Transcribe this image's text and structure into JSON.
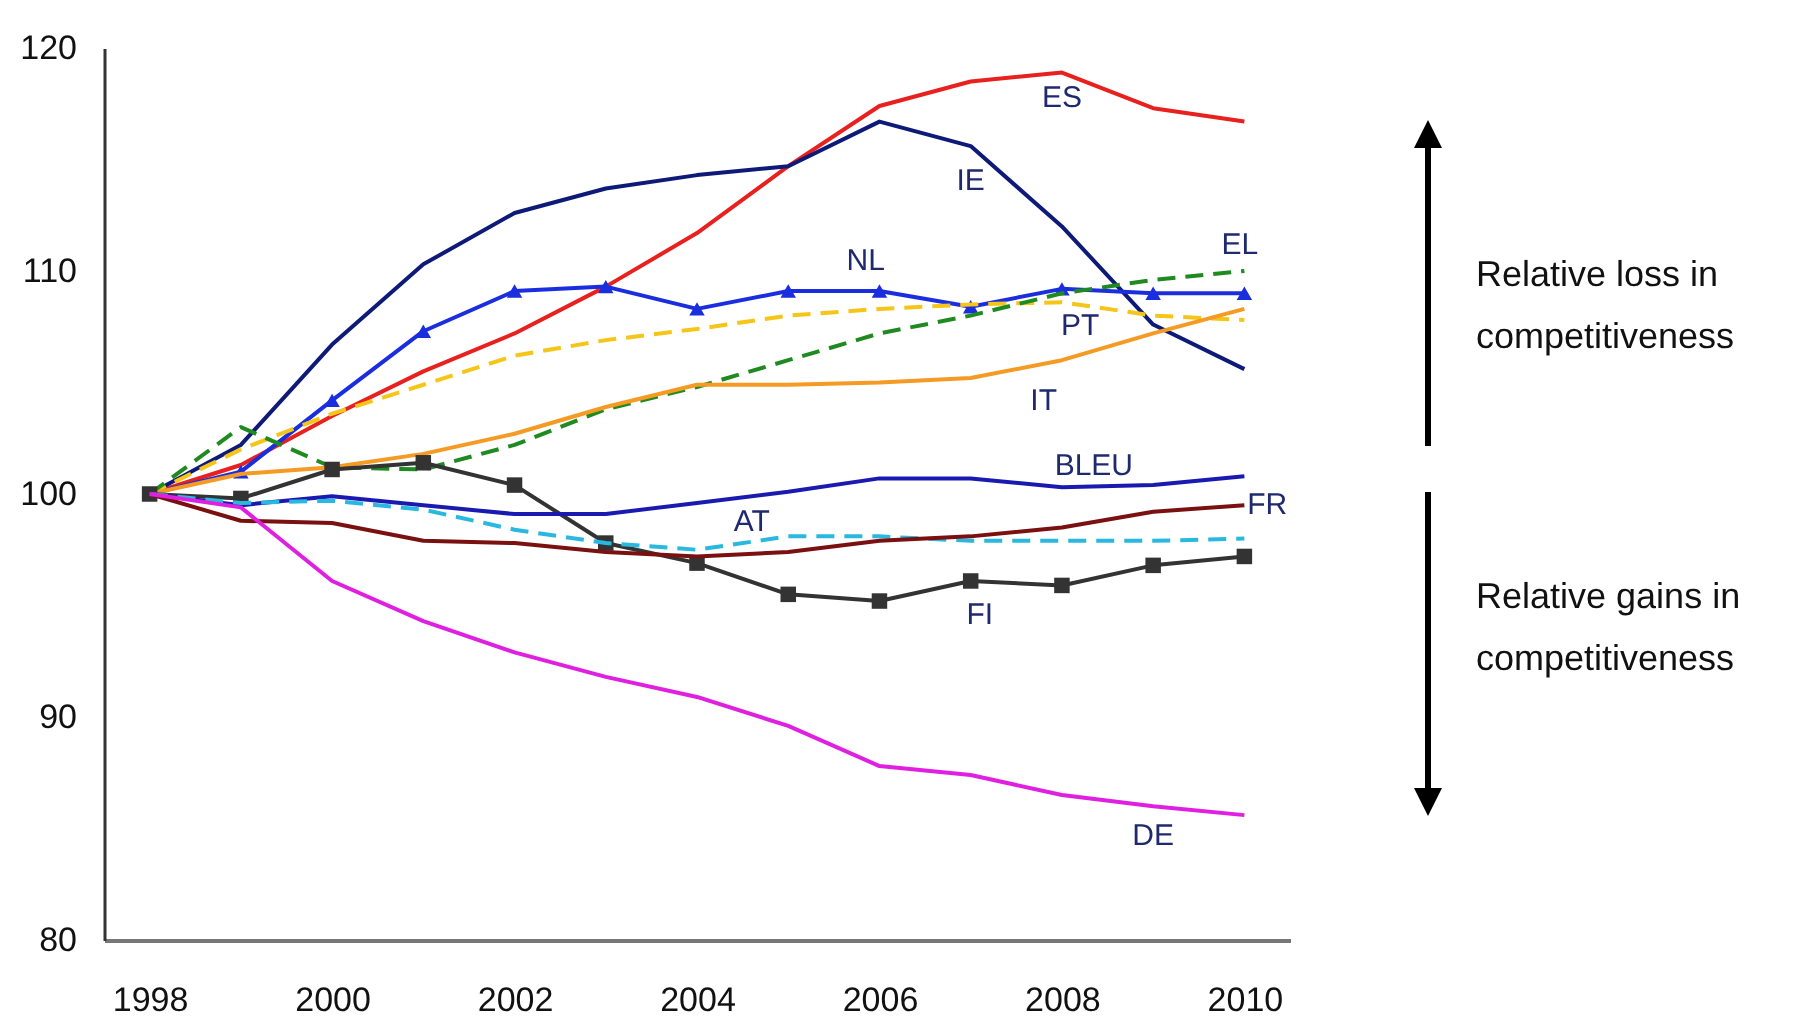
{
  "chart_data": {
    "type": "line",
    "x": [
      1998,
      1999,
      2000,
      2001,
      2002,
      2003,
      2004,
      2005,
      2006,
      2007,
      2008,
      2009,
      2010
    ],
    "series": [
      {
        "name": "ES",
        "color": "#e8201e",
        "values": [
          100,
          101.3,
          103.5,
          105.5,
          107.2,
          109.3,
          111.7,
          114.7,
          117.4,
          118.5,
          118.9,
          117.3,
          116.7
        ]
      },
      {
        "name": "IE",
        "color": "#0d1a78",
        "values": [
          100,
          102.2,
          106.7,
          110.3,
          112.6,
          113.7,
          114.3,
          114.7,
          116.7,
          115.6,
          112.0,
          107.6,
          105.6
        ]
      },
      {
        "name": "NL",
        "color": "#1a2ee0",
        "marker": "triangle",
        "values": [
          100,
          101.0,
          104.2,
          107.3,
          109.1,
          109.3,
          108.3,
          109.1,
          109.1,
          108.4,
          109.2,
          109.0,
          109.0
        ]
      },
      {
        "name": "PT",
        "color": "#f5c518",
        "line_style": "dashed",
        "values": [
          100,
          102.0,
          103.6,
          104.9,
          106.2,
          106.9,
          107.4,
          108.0,
          108.3,
          108.5,
          108.6,
          108.0,
          107.8
        ]
      },
      {
        "name": "EL",
        "color": "#1f8a1f",
        "line_style": "dashed",
        "values": [
          100,
          103.0,
          101.2,
          101.1,
          102.2,
          103.8,
          104.8,
          106.0,
          107.2,
          108.0,
          109.0,
          109.6,
          110.0
        ]
      },
      {
        "name": "IT",
        "color": "#f59a23",
        "values": [
          100,
          100.9,
          101.2,
          101.8,
          102.7,
          103.9,
          104.9,
          104.9,
          105.0,
          105.2,
          106.0,
          107.2,
          108.3
        ]
      },
      {
        "name": "FI",
        "color": "#333333",
        "marker": "square",
        "values": [
          100,
          99.8,
          101.1,
          101.4,
          100.4,
          97.8,
          96.9,
          95.5,
          95.2,
          96.1,
          95.9,
          96.8,
          97.2
        ]
      },
      {
        "name": "BLEU",
        "color": "#1a1ab0",
        "values": [
          100,
          99.5,
          99.9,
          99.5,
          99.1,
          99.1,
          99.6,
          100.1,
          100.7,
          100.7,
          100.3,
          100.4,
          100.8
        ]
      },
      {
        "name": "AT",
        "color": "#29b8e0",
        "line_style": "dashed",
        "values": [
          100,
          99.6,
          99.7,
          99.3,
          98.4,
          97.8,
          97.5,
          98.1,
          98.1,
          97.9,
          97.9,
          97.9,
          98.0
        ]
      },
      {
        "name": "FR",
        "color": "#7a1010",
        "values": [
          100,
          98.8,
          98.7,
          97.9,
          97.8,
          97.4,
          97.2,
          97.4,
          97.9,
          98.1,
          98.5,
          99.2,
          99.5
        ]
      },
      {
        "name": "DE",
        "color": "#e020e0",
        "values": [
          100,
          99.4,
          96.1,
          94.3,
          92.9,
          91.8,
          90.9,
          89.6,
          87.8,
          87.4,
          86.5,
          86.0,
          85.6
        ]
      }
    ],
    "xlim": [
      1997.5,
      2010.5
    ],
    "xticks": [
      1998,
      2000,
      2002,
      2004,
      2006,
      2008,
      2010
    ],
    "ylim": [
      80,
      120
    ],
    "yticks": [
      80,
      90,
      100,
      110,
      120
    ],
    "grid": false,
    "legend": false,
    "annotations": [
      "Relative loss in competitiveness",
      "Relative gains in competitiveness"
    ]
  }
}
